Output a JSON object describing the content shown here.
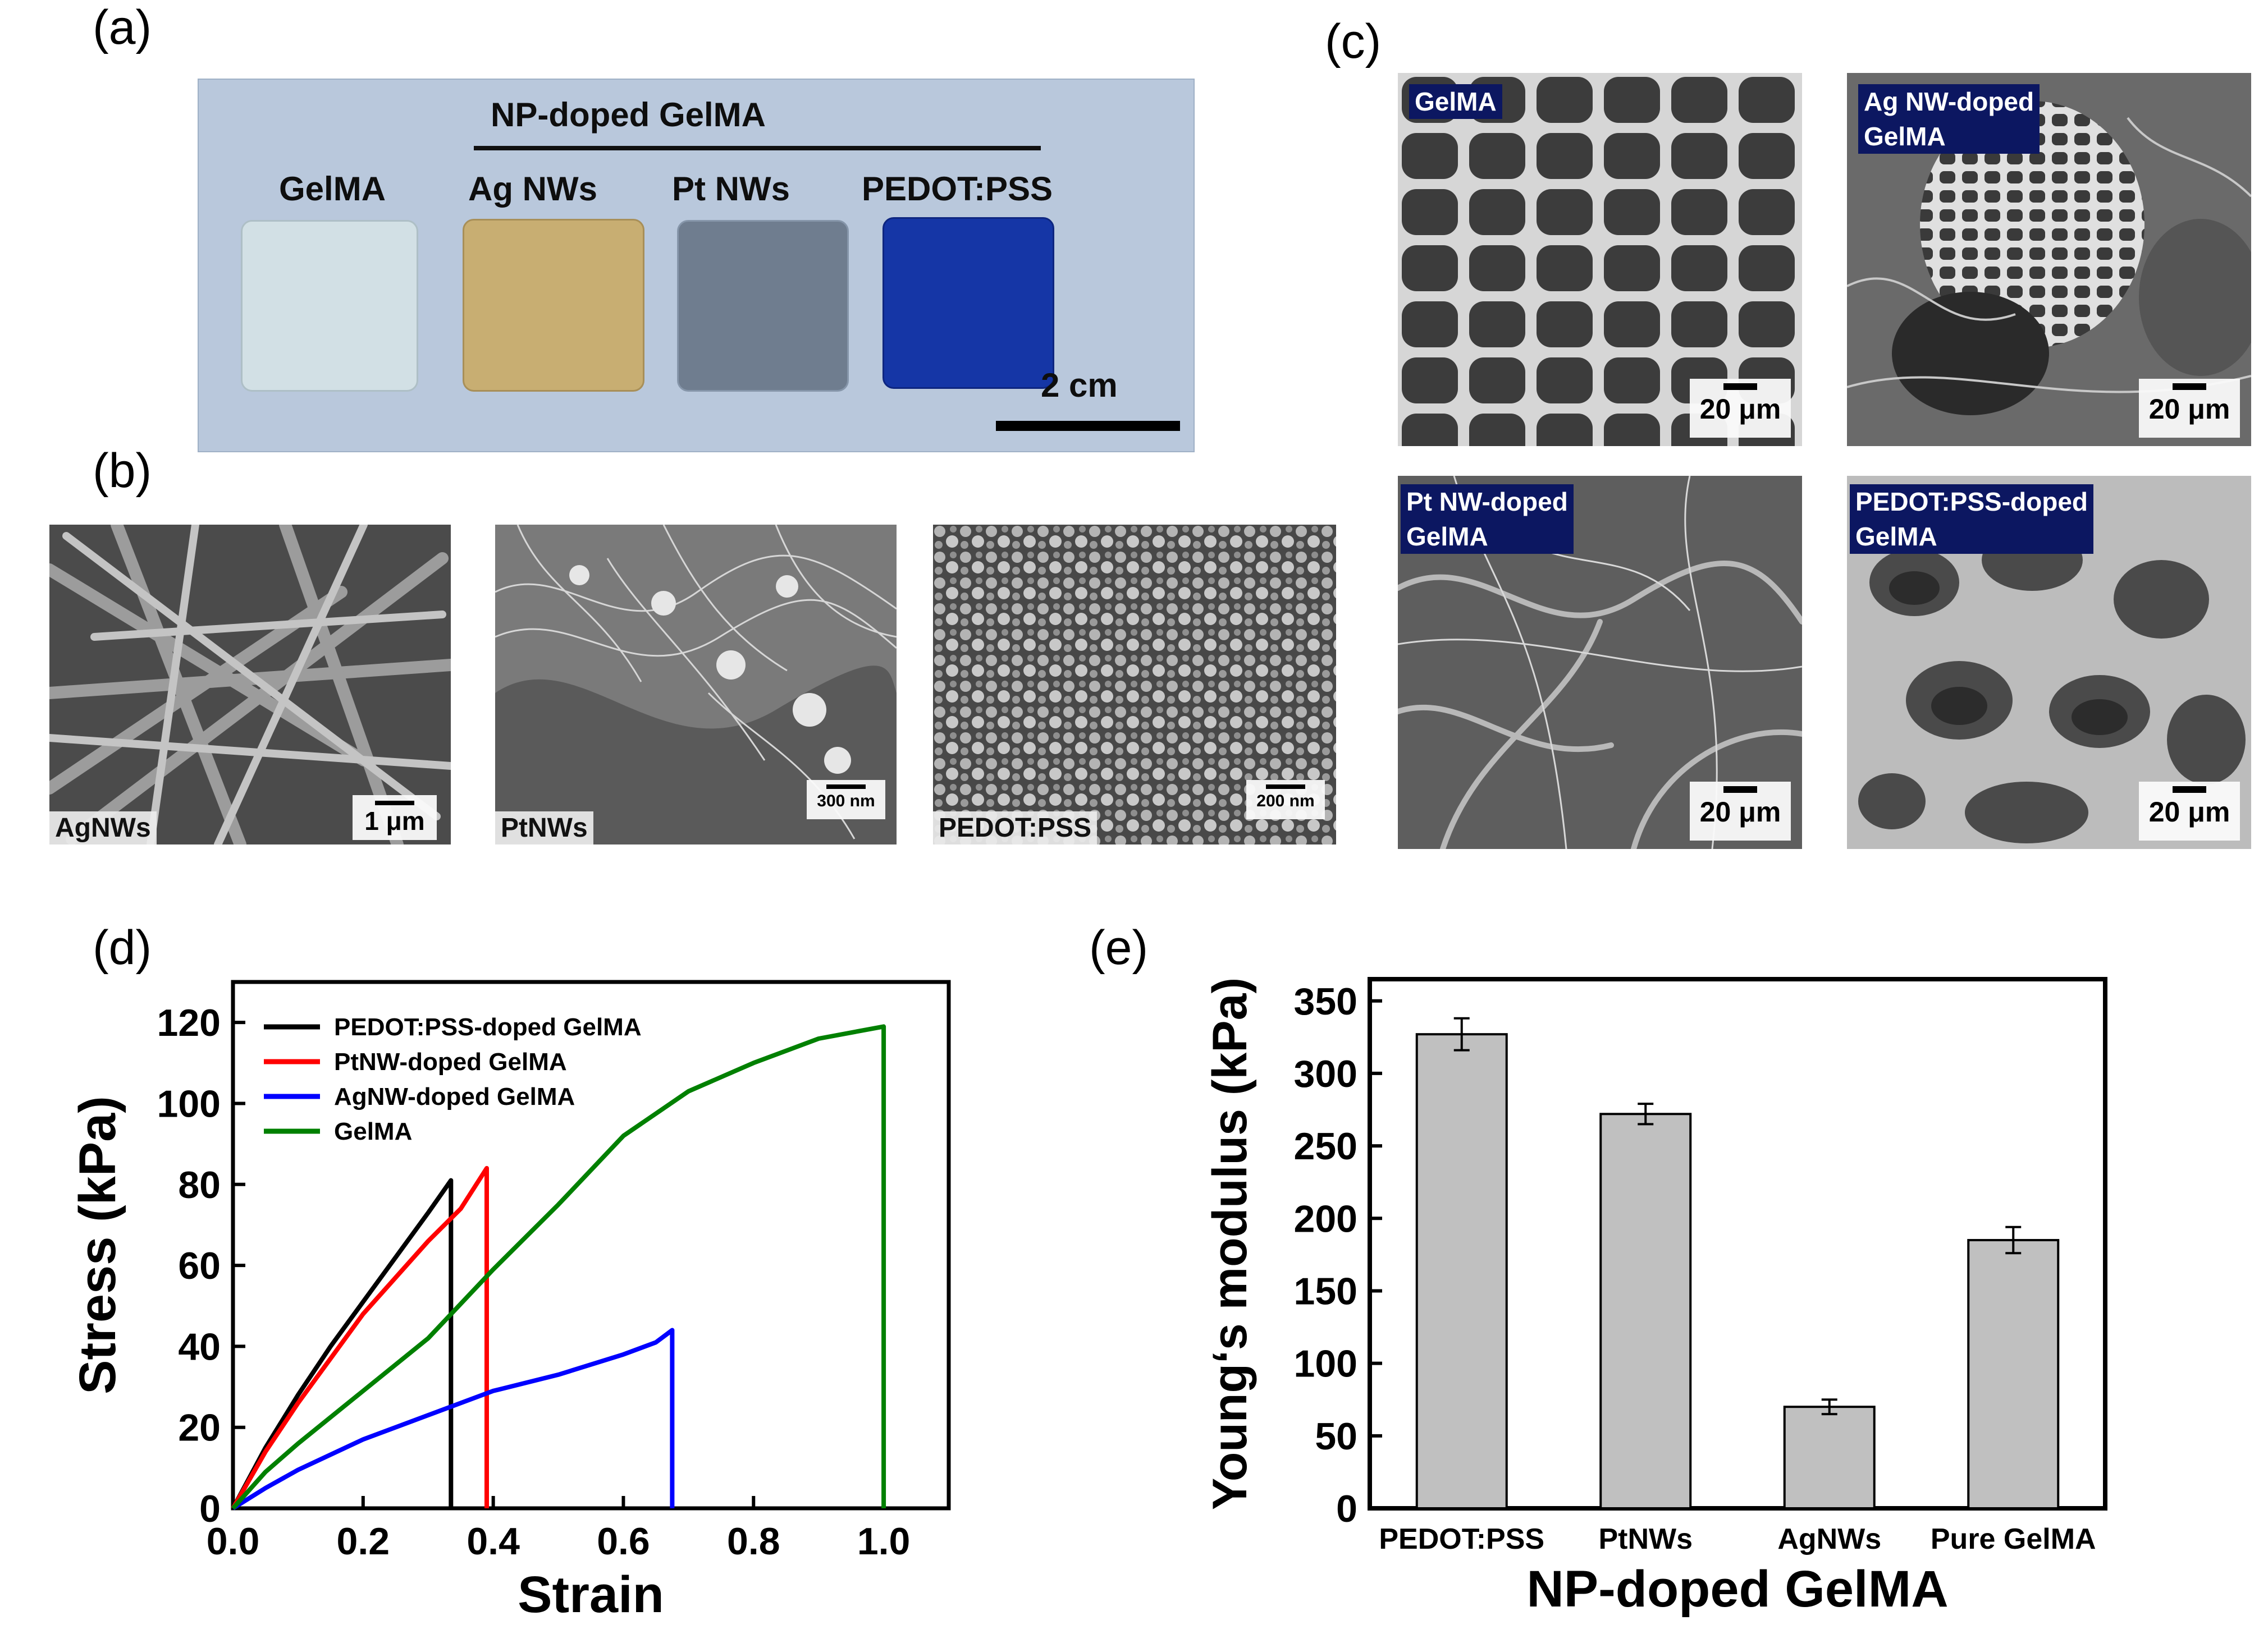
{
  "panels": {
    "a": {
      "letter": "(a)",
      "group_label": "NP-doped GelMA",
      "samples": [
        {
          "label": "GelMA",
          "color": "#cfdfe4"
        },
        {
          "label": "Ag NWs",
          "color": "#c7ad72"
        },
        {
          "label": "Pt NWs",
          "color": "#6c7a8c"
        },
        {
          "label": "PEDOT:PSS",
          "color": "#1638a8"
        }
      ],
      "scale_label": "2 cm"
    },
    "b": {
      "letter": "(b)",
      "images": [
        {
          "label": "AgNWs",
          "scale": "1 μm"
        },
        {
          "label": "PtNWs",
          "scale": "300 nm"
        },
        {
          "label": "PEDOT:PSS",
          "scale": "200 nm"
        }
      ]
    },
    "c": {
      "letter": "(c)",
      "images": [
        {
          "label": "GelMA",
          "scale": "20 μm"
        },
        {
          "label": "Ag NW-doped\nGelMA",
          "scale": "20 μm"
        },
        {
          "label": "Pt NW-doped\nGelMA",
          "scale": "20 μm"
        },
        {
          "label": "PEDOT:PSS-doped\nGelMA",
          "scale": "20 μm"
        }
      ]
    },
    "d": {
      "letter": "(d)"
    },
    "e": {
      "letter": "(e)"
    }
  },
  "chart_data": [
    {
      "type": "line",
      "xlabel": "Strain",
      "ylabel": "Stress (kPa)",
      "xlim": [
        0.0,
        1.1
      ],
      "ylim": [
        0,
        130
      ],
      "xticks": [
        "0.0",
        "0.2",
        "0.4",
        "0.6",
        "0.8",
        "1.0"
      ],
      "yticks": [
        "0",
        "20",
        "40",
        "60",
        "80",
        "100",
        "120"
      ],
      "legend_position": "top-left",
      "series": [
        {
          "name": "PEDOT:PSS-doped GelMA",
          "color": "#000000",
          "points": [
            [
              0,
              0
            ],
            [
              0.05,
              15
            ],
            [
              0.1,
              28
            ],
            [
              0.15,
              40
            ],
            [
              0.2,
              51
            ],
            [
              0.25,
              62
            ],
            [
              0.3,
              73
            ],
            [
              0.335,
              81
            ],
            [
              0.335,
              0
            ]
          ]
        },
        {
          "name": "PtNW-doped GelMA",
          "color": "#ff0000",
          "points": [
            [
              0,
              0
            ],
            [
              0.05,
              14
            ],
            [
              0.1,
              26
            ],
            [
              0.15,
              37
            ],
            [
              0.2,
              48
            ],
            [
              0.25,
              57
            ],
            [
              0.3,
              66
            ],
            [
              0.35,
              74
            ],
            [
              0.39,
              84
            ],
            [
              0.39,
              0
            ]
          ]
        },
        {
          "name": "AgNW-doped GelMA",
          "color": "#0000ff",
          "points": [
            [
              0,
              0
            ],
            [
              0.05,
              5
            ],
            [
              0.1,
              9.5
            ],
            [
              0.2,
              17
            ],
            [
              0.3,
              23
            ],
            [
              0.4,
              29
            ],
            [
              0.5,
              33
            ],
            [
              0.6,
              38
            ],
            [
              0.65,
              41
            ],
            [
              0.675,
              44
            ],
            [
              0.675,
              0
            ]
          ]
        },
        {
          "name": "GelMA",
          "color": "#008000",
          "points": [
            [
              0,
              0
            ],
            [
              0.05,
              9
            ],
            [
              0.1,
              16
            ],
            [
              0.2,
              29
            ],
            [
              0.3,
              42
            ],
            [
              0.4,
              59
            ],
            [
              0.5,
              75
            ],
            [
              0.6,
              92
            ],
            [
              0.7,
              103
            ],
            [
              0.8,
              110
            ],
            [
              0.9,
              116
            ],
            [
              1.0,
              119
            ],
            [
              1.0,
              0
            ]
          ]
        }
      ]
    },
    {
      "type": "bar",
      "xlabel": "NP-doped GelMA",
      "ylabel": "Young‘s modulus (kPa)",
      "ylim": [
        0,
        365
      ],
      "yticks": [
        "0",
        "50",
        "100",
        "150",
        "200",
        "250",
        "300",
        "350"
      ],
      "categories": [
        "PEDOT:PSS",
        "PtNWs",
        "AgNWs",
        "Pure GelMA"
      ],
      "values": [
        327,
        272,
        70,
        185
      ],
      "errors": [
        11,
        7,
        5,
        9
      ],
      "bar_color": "#c0c0c0"
    }
  ]
}
